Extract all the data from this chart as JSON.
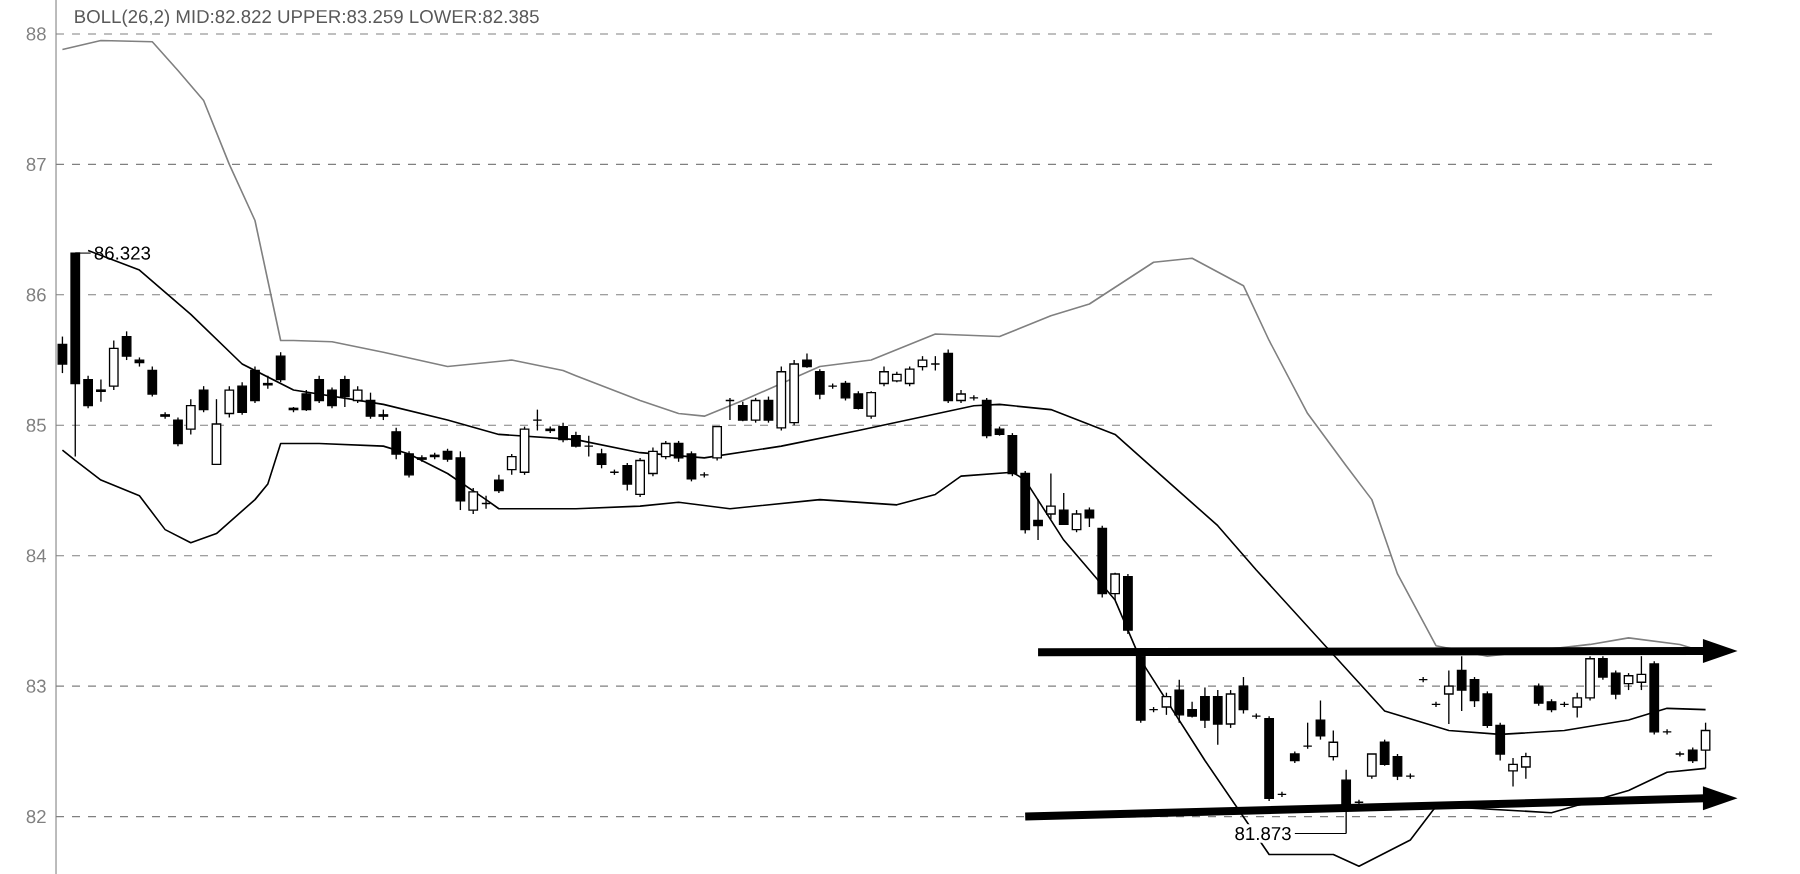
{
  "chart_data": {
    "type": "candlestick",
    "title": "BOLL(26,2) MID:82.822 UPPER:83.259 LOWER:82.385",
    "categories": [
      null,
      null,
      null,
      null,
      null,
      null,
      null,
      null,
      null,
      null,
      null,
      null,
      null,
      null,
      null,
      null,
      null,
      null,
      null,
      null,
      null,
      null,
      null,
      null,
      null,
      null,
      null,
      null,
      null,
      null,
      null,
      null,
      null,
      null,
      null,
      null,
      null,
      null,
      null,
      null,
      null,
      null,
      null,
      null,
      null,
      null,
      null,
      null,
      null,
      null,
      null,
      null,
      null,
      null,
      null,
      null,
      null,
      null,
      null,
      null,
      null,
      null,
      null,
      null,
      null,
      null,
      null,
      null,
      null,
      null,
      null,
      null,
      null,
      null,
      null,
      null,
      null,
      null,
      null,
      null,
      null,
      null,
      null,
      null,
      null,
      null,
      null,
      null,
      null,
      null,
      null,
      null,
      null,
      null,
      null,
      null,
      null,
      null,
      null,
      null,
      null,
      null,
      null,
      null,
      null,
      null,
      null,
      null,
      null,
      null,
      null,
      null,
      null,
      null,
      null,
      null,
      null,
      null,
      null,
      null,
      null,
      null,
      null,
      null,
      null,
      null,
      null,
      null,
      null
    ],
    "ohlc": [
      [
        85.62,
        85.68,
        85.4,
        85.47
      ],
      [
        86.32,
        86.32,
        84.76,
        85.32
      ],
      [
        85.35,
        85.38,
        85.13,
        85.15
      ],
      [
        85.27,
        85.35,
        85.18,
        85.26
      ],
      [
        85.3,
        85.65,
        85.27,
        85.59
      ],
      [
        85.68,
        85.72,
        85.5,
        85.53
      ],
      [
        85.5,
        85.52,
        85.45,
        85.48
      ],
      [
        85.42,
        85.45,
        85.22,
        85.24
      ],
      [
        85.08,
        85.1,
        85.05,
        85.07
      ],
      [
        85.04,
        85.06,
        84.84,
        84.86
      ],
      [
        84.97,
        85.2,
        84.93,
        85.15
      ],
      [
        85.27,
        85.3,
        85.1,
        85.12
      ],
      [
        84.7,
        85.2,
        84.7,
        85.01
      ],
      [
        85.09,
        85.3,
        85.06,
        85.27
      ],
      [
        85.3,
        85.33,
        85.08,
        85.1
      ],
      [
        85.42,
        85.45,
        85.17,
        85.19
      ],
      [
        85.32,
        85.38,
        85.28,
        85.31
      ],
      [
        85.53,
        85.56,
        85.33,
        85.35
      ],
      [
        85.13,
        85.14,
        85.1,
        85.12
      ],
      [
        85.24,
        85.27,
        85.11,
        85.12
      ],
      [
        85.35,
        85.38,
        85.17,
        85.19
      ],
      [
        85.27,
        85.29,
        85.13,
        85.15
      ],
      [
        85.35,
        85.38,
        85.14,
        85.22
      ],
      [
        85.19,
        85.3,
        85.17,
        85.27
      ],
      [
        85.19,
        85.25,
        85.05,
        85.07
      ],
      [
        85.08,
        85.12,
        85.04,
        85.07
      ],
      [
        84.95,
        84.98,
        84.74,
        84.78
      ],
      [
        84.78,
        84.8,
        84.6,
        84.62
      ],
      [
        84.75,
        84.77,
        84.72,
        84.74
      ],
      [
        84.77,
        84.79,
        84.74,
        84.76
      ],
      [
        84.8,
        84.82,
        84.72,
        84.74
      ],
      [
        84.75,
        84.8,
        84.35,
        84.42
      ],
      [
        84.35,
        84.52,
        84.32,
        84.49
      ],
      [
        84.4,
        84.46,
        84.36,
        84.4
      ],
      [
        84.58,
        84.62,
        84.48,
        84.5
      ],
      [
        84.66,
        84.78,
        84.62,
        84.76
      ],
      [
        84.64,
        84.99,
        84.62,
        84.97
      ],
      [
        85.04,
        85.12,
        84.96,
        85.04
      ],
      [
        84.97,
        84.99,
        84.94,
        84.96
      ],
      [
        84.99,
        85.02,
        84.87,
        84.89
      ],
      [
        84.92,
        84.95,
        84.83,
        84.84
      ],
      [
        84.84,
        84.92,
        84.76,
        84.84
      ],
      [
        84.78,
        84.82,
        84.67,
        84.7
      ],
      [
        84.64,
        84.66,
        84.62,
        84.64
      ],
      [
        84.69,
        84.71,
        84.5,
        84.55
      ],
      [
        84.47,
        84.75,
        84.45,
        84.73
      ],
      [
        84.63,
        84.83,
        84.61,
        84.8
      ],
      [
        84.76,
        84.88,
        84.74,
        84.86
      ],
      [
        84.86,
        84.88,
        84.72,
        84.75
      ],
      [
        84.78,
        84.8,
        84.57,
        84.59
      ],
      [
        84.62,
        84.64,
        84.6,
        84.62
      ],
      [
        84.75,
        84.99,
        84.73,
        84.99
      ],
      [
        85.19,
        85.21,
        85.04,
        85.19
      ],
      [
        85.15,
        85.18,
        85.03,
        85.04
      ],
      [
        85.04,
        85.21,
        85.02,
        85.19
      ],
      [
        85.19,
        85.22,
        85.02,
        85.04
      ],
      [
        84.98,
        85.45,
        84.96,
        85.41
      ],
      [
        85.02,
        85.5,
        85.0,
        85.47
      ],
      [
        85.5,
        85.55,
        85.44,
        85.45
      ],
      [
        85.41,
        85.43,
        85.2,
        85.24
      ],
      [
        85.3,
        85.32,
        85.28,
        85.3
      ],
      [
        85.32,
        85.34,
        85.19,
        85.21
      ],
      [
        85.24,
        85.26,
        85.12,
        85.13
      ],
      [
        85.07,
        85.26,
        85.05,
        85.25
      ],
      [
        85.32,
        85.45,
        85.3,
        85.41
      ],
      [
        85.34,
        85.41,
        85.33,
        85.39
      ],
      [
        85.32,
        85.45,
        85.3,
        85.43
      ],
      [
        85.45,
        85.53,
        85.42,
        85.5
      ],
      [
        85.47,
        85.53,
        85.42,
        85.47
      ],
      [
        85.55,
        85.58,
        85.17,
        85.19
      ],
      [
        85.19,
        85.27,
        85.17,
        85.24
      ],
      [
        85.21,
        85.23,
        85.19,
        85.21
      ],
      [
        85.19,
        85.21,
        84.9,
        84.92
      ],
      [
        84.97,
        84.99,
        84.92,
        84.93
      ],
      [
        84.92,
        84.94,
        84.61,
        84.63
      ],
      [
        84.63,
        84.65,
        84.17,
        84.2
      ],
      [
        84.27,
        84.43,
        84.12,
        84.23
      ],
      [
        84.32,
        84.63,
        84.28,
        84.38
      ],
      [
        84.35,
        84.48,
        84.24,
        84.24
      ],
      [
        84.2,
        84.35,
        84.18,
        84.32
      ],
      [
        84.35,
        84.37,
        84.22,
        84.29
      ],
      [
        84.21,
        84.23,
        83.68,
        83.71
      ],
      [
        83.71,
        83.87,
        83.66,
        83.86
      ],
      [
        83.84,
        83.86,
        83.4,
        83.43
      ],
      [
        83.23,
        83.25,
        82.72,
        82.74
      ],
      [
        82.82,
        82.84,
        82.8,
        82.82
      ],
      [
        82.84,
        82.95,
        82.78,
        82.92
      ],
      [
        82.97,
        83.05,
        82.72,
        82.78
      ],
      [
        82.82,
        82.88,
        82.76,
        82.77
      ],
      [
        82.92,
        82.99,
        82.68,
        82.74
      ],
      [
        82.92,
        82.97,
        82.55,
        82.71
      ],
      [
        82.71,
        82.97,
        82.68,
        82.94
      ],
      [
        83.0,
        83.07,
        82.79,
        82.82
      ],
      [
        82.77,
        82.79,
        82.75,
        82.77
      ],
      [
        82.75,
        82.77,
        82.12,
        82.14
      ],
      [
        82.17,
        82.19,
        82.15,
        82.17
      ],
      [
        82.48,
        82.5,
        82.41,
        82.43
      ],
      [
        82.54,
        82.72,
        82.52,
        82.54
      ],
      [
        82.74,
        82.89,
        82.59,
        82.62
      ],
      [
        82.46,
        82.66,
        82.43,
        82.57
      ],
      [
        82.28,
        82.36,
        81.87,
        82.05
      ],
      [
        82.11,
        82.13,
        82.09,
        82.11
      ],
      [
        82.31,
        82.48,
        82.29,
        82.48
      ],
      [
        82.57,
        82.59,
        82.39,
        82.4
      ],
      [
        82.46,
        82.48,
        82.28,
        82.31
      ],
      [
        82.31,
        82.33,
        82.29,
        82.31
      ],
      [
        83.05,
        83.07,
        83.03,
        83.05
      ],
      [
        82.86,
        82.88,
        82.84,
        82.86
      ],
      [
        82.94,
        83.12,
        82.71,
        83.0
      ],
      [
        83.12,
        83.23,
        82.81,
        82.97
      ],
      [
        83.05,
        83.07,
        82.84,
        82.89
      ],
      [
        82.94,
        82.96,
        82.68,
        82.7
      ],
      [
        82.7,
        82.72,
        82.43,
        82.48
      ],
      [
        82.35,
        82.45,
        82.23,
        82.4
      ],
      [
        82.38,
        82.49,
        82.29,
        82.46
      ],
      [
        83.0,
        83.02,
        82.85,
        82.87
      ],
      [
        82.88,
        82.9,
        82.8,
        82.82
      ],
      [
        82.86,
        82.88,
        82.84,
        82.86
      ],
      [
        82.84,
        82.95,
        82.76,
        82.91
      ],
      [
        82.91,
        83.23,
        82.89,
        83.21
      ],
      [
        83.21,
        83.23,
        83.05,
        83.07
      ],
      [
        83.1,
        83.12,
        82.9,
        82.94
      ],
      [
        83.02,
        83.1,
        82.97,
        83.08
      ],
      [
        83.03,
        83.23,
        82.97,
        83.09
      ],
      [
        83.17,
        83.19,
        82.63,
        82.65
      ],
      [
        82.65,
        82.67,
        82.63,
        82.65
      ],
      [
        82.48,
        82.5,
        82.46,
        82.48
      ],
      [
        82.51,
        82.53,
        82.41,
        82.43
      ],
      [
        82.51,
        82.72,
        82.37,
        82.66
      ]
    ],
    "series": [
      {
        "type": "line",
        "color": "#808080",
        "values": [
          87.88,
          null,
          null,
          87.95,
          null,
          null,
          null,
          87.94,
          null,
          87.72,
          null,
          87.49,
          null,
          87.0,
          null,
          86.57,
          86.11,
          85.65,
          85.65,
          null,
          null,
          85.64,
          null,
          null,
          null,
          85.56,
          null,
          null,
          null,
          null,
          85.45,
          null,
          null,
          null,
          null,
          85.5,
          null,
          null,
          null,
          85.42,
          85.38,
          null,
          null,
          null,
          null,
          85.19,
          null,
          null,
          85.09,
          null,
          85.07,
          null,
          null,
          85.19,
          null,
          null,
          null,
          null,
          null,
          85.45,
          null,
          null,
          null,
          85.5,
          null,
          null,
          null,
          null,
          85.7,
          null,
          null,
          null,
          null,
          85.68,
          null,
          null,
          null,
          85.84,
          null,
          null,
          85.93,
          null,
          null,
          null,
          null,
          86.25,
          null,
          null,
          86.28,
          null,
          null,
          null,
          86.07,
          null,
          85.65,
          null,
          null,
          85.09,
          null,
          null,
          84.69,
          null,
          84.43,
          null,
          83.86,
          null,
          null,
          83.31,
          null,
          null,
          null,
          83.23,
          null,
          null,
          null,
          null,
          null,
          null,
          null,
          83.32,
          null,
          null,
          83.37,
          null,
          null,
          null,
          83.32,
          null,
          83.26
        ]
      },
      {
        "type": "line",
        "color": "#000000",
        "values": [
          null,
          null,
          86.34,
          null,
          null,
          null,
          86.19,
          null,
          null,
          null,
          85.85,
          null,
          null,
          null,
          85.47,
          null,
          null,
          null,
          85.27,
          null,
          null,
          null,
          null,
          null,
          null,
          85.16,
          null,
          null,
          null,
          null,
          85.04,
          null,
          null,
          null,
          84.93,
          null,
          null,
          null,
          null,
          null,
          84.89,
          null,
          null,
          null,
          null,
          84.79,
          null,
          null,
          null,
          null,
          84.75,
          null,
          null,
          null,
          null,
          null,
          84.84,
          null,
          null,
          null,
          null,
          null,
          84.96,
          null,
          null,
          null,
          null,
          null,
          null,
          null,
          null,
          85.15,
          null,
          85.16,
          null,
          null,
          null,
          85.12,
          null,
          null,
          null,
          null,
          84.93,
          null,
          null,
          null,
          84.58,
          null,
          null,
          null,
          84.23,
          null,
          null,
          83.89,
          null,
          null,
          null,
          null,
          83.35,
          null,
          null,
          null,
          null,
          82.81,
          null,
          null,
          null,
          null,
          82.66,
          null,
          null,
          null,
          82.63,
          null,
          null,
          null,
          null,
          82.66,
          null,
          null,
          null,
          null,
          82.74,
          null,
          null,
          82.83,
          null,
          null,
          82.82
        ]
      },
      {
        "type": "line",
        "color": "#000000",
        "values": [
          84.81,
          84.73,
          null,
          84.58,
          null,
          null,
          84.46,
          null,
          84.2,
          null,
          84.1,
          null,
          84.17,
          null,
          null,
          84.43,
          84.55,
          84.86,
          null,
          null,
          84.86,
          null,
          null,
          null,
          null,
          84.84,
          null,
          84.78,
          null,
          null,
          84.63,
          null,
          null,
          84.43,
          84.36,
          null,
          null,
          null,
          null,
          null,
          84.36,
          null,
          null,
          null,
          null,
          84.38,
          null,
          null,
          84.41,
          null,
          null,
          null,
          84.36,
          null,
          null,
          null,
          null,
          null,
          null,
          84.43,
          null,
          null,
          null,
          null,
          null,
          84.39,
          null,
          null,
          84.47,
          null,
          84.61,
          null,
          null,
          null,
          84.64,
          84.58,
          null,
          null,
          84.12,
          null,
          null,
          null,
          83.66,
          null,
          83.2,
          null,
          null,
          null,
          null,
          82.43,
          null,
          null,
          null,
          null,
          81.71,
          null,
          null,
          null,
          null,
          81.71,
          null,
          81.62,
          null,
          null,
          null,
          81.82,
          null,
          82.08,
          null,
          null,
          null,
          null,
          null,
          null,
          null,
          null,
          82.03,
          null,
          null,
          null,
          null,
          null,
          82.2,
          null,
          null,
          82.34,
          null,
          null,
          82.37
        ]
      },
      {
        "type": "line",
        "color": "#000000",
        "values": [
          null,
          null,
          null,
          null,
          null,
          null,
          null,
          null,
          null,
          null,
          null,
          null,
          null,
          null,
          null,
          null,
          null,
          null,
          null,
          null,
          null,
          null,
          null,
          null,
          null,
          null,
          null,
          null,
          null,
          null,
          null,
          null,
          null,
          null,
          null,
          null,
          null,
          null,
          null,
          null,
          null,
          null,
          null,
          null,
          null,
          null,
          null,
          null,
          null,
          null,
          null,
          null,
          null,
          null,
          null,
          null,
          null,
          null,
          null,
          null,
          null,
          null,
          null,
          null,
          null,
          null,
          null,
          null,
          null,
          null,
          null,
          null,
          null,
          null,
          null,
          null,
          83.26,
          null,
          null,
          null,
          null,
          null,
          null,
          null,
          null,
          null,
          null,
          null,
          null,
          null,
          null,
          null,
          null,
          null,
          null,
          null,
          null,
          null,
          null,
          null,
          null,
          null,
          null,
          null,
          null,
          null,
          null,
          null,
          null,
          null,
          null,
          null,
          null,
          null,
          null,
          null,
          null,
          null,
          null,
          null,
          null,
          null,
          null,
          null,
          null,
          null,
          null,
          null,
          83.27
        ]
      },
      {
        "type": "line",
        "color": "#000000",
        "values": [
          null,
          null,
          null,
          null,
          null,
          null,
          null,
          null,
          null,
          null,
          null,
          null,
          null,
          null,
          null,
          null,
          null,
          null,
          null,
          null,
          null,
          null,
          null,
          null,
          null,
          null,
          null,
          null,
          null,
          null,
          null,
          null,
          null,
          null,
          null,
          null,
          null,
          null,
          null,
          null,
          null,
          null,
          null,
          null,
          null,
          null,
          null,
          null,
          null,
          null,
          null,
          null,
          null,
          null,
          null,
          null,
          null,
          null,
          null,
          null,
          null,
          null,
          null,
          null,
          null,
          null,
          null,
          null,
          null,
          null,
          null,
          null,
          null,
          null,
          null,
          82.0,
          null,
          null,
          null,
          null,
          null,
          null,
          null,
          null,
          null,
          null,
          null,
          null,
          null,
          null,
          null,
          null,
          null,
          null,
          null,
          null,
          null,
          null,
          null,
          null,
          null,
          null,
          null,
          null,
          null,
          null,
          null,
          null,
          null,
          null,
          null,
          null,
          null,
          null,
          null,
          null,
          null,
          null,
          null,
          null,
          null,
          null,
          null,
          null,
          null,
          null,
          null,
          null,
          82.14
        ]
      }
    ],
    "ylim": [
      81.56,
      88.26
    ],
    "yticks": [
      82,
      83,
      84,
      85,
      86,
      87,
      88
    ],
    "grid": "y",
    "tick_labels": "y",
    "annotations": [
      {
        "text": "86.323",
        "y": 86.32
      },
      {
        "text": "81.873",
        "y": 81.87
      }
    ]
  }
}
